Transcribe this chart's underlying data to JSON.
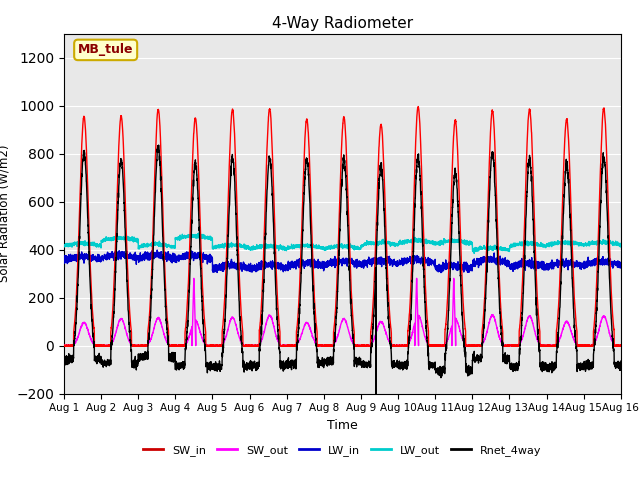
{
  "title": "4-Way Radiometer",
  "xlabel": "Time",
  "ylabel": "Solar Radiation (W/m2)",
  "ylim": [
    -200,
    1300
  ],
  "yticks": [
    -200,
    0,
    200,
    400,
    600,
    800,
    1000,
    1200
  ],
  "n_days": 15,
  "colors": {
    "SW_in": "#FF0000",
    "SW_out": "#FF00FF",
    "LW_in": "#0000CC",
    "LW_out": "#00CCCC",
    "Rnet_4way": "#000000"
  },
  "linewidths": {
    "SW_in": 1.0,
    "SW_out": 1.0,
    "LW_in": 1.0,
    "LW_out": 1.0,
    "Rnet_4way": 1.0
  },
  "annotation_text": "MB_tule",
  "annotation_box_color": "#FFFFCC",
  "annotation_border_color": "#CCAA00",
  "background_color": "#E8E8E8",
  "grid_color": "#FFFFFF",
  "legend_colors": {
    "SW_in": "#CC0000",
    "SW_out": "#FF00FF",
    "LW_in": "#0000CC",
    "LW_out": "#00CCCC",
    "Rnet_4way": "#000000"
  }
}
